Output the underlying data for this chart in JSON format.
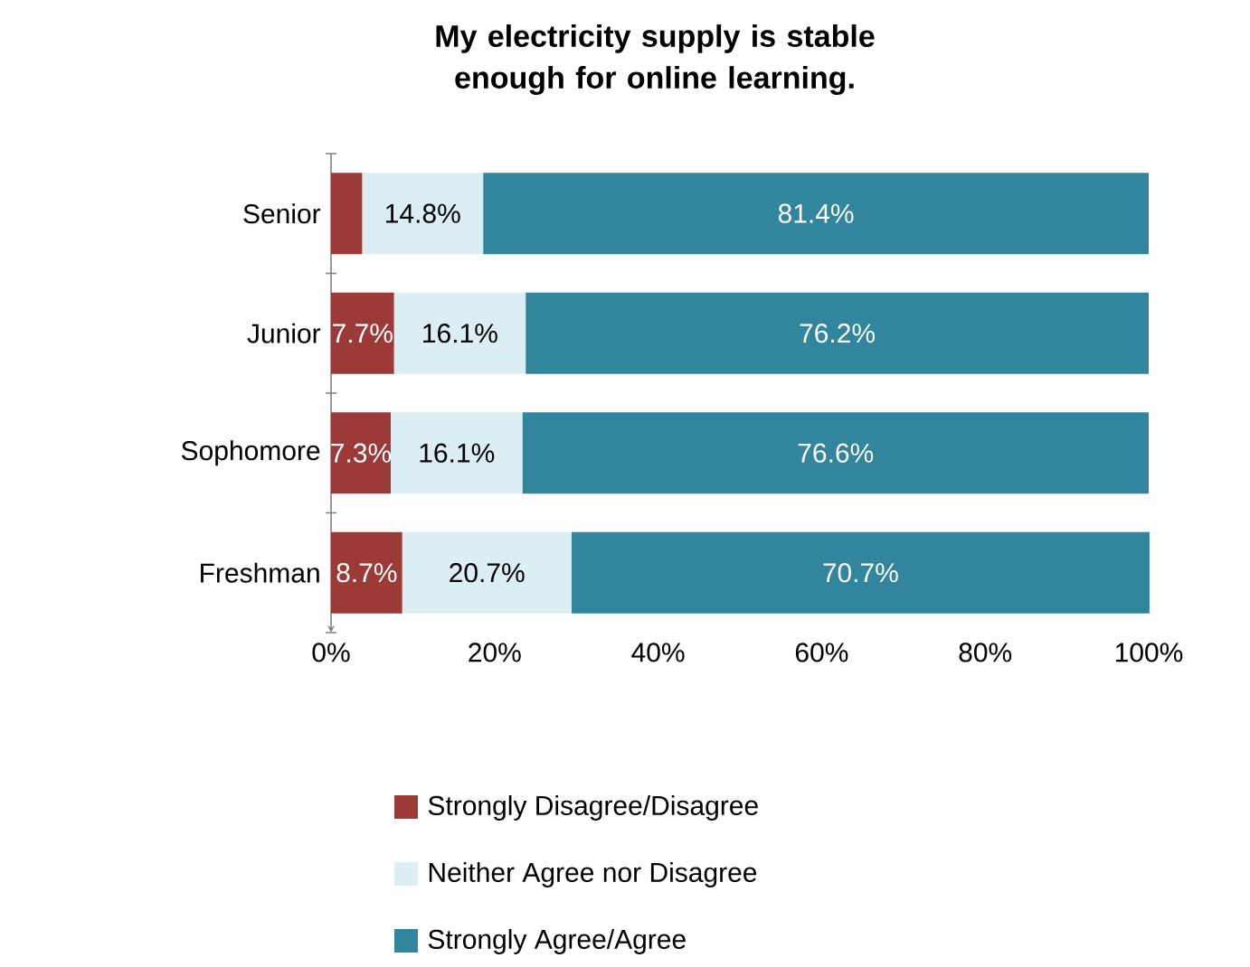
{
  "chart_data": {
    "type": "bar",
    "orientation": "horizontal",
    "stacked": true,
    "title": "My electricity supply is stable enough for online learning.",
    "categories": [
      "Senior",
      "Junior",
      "Sophomore",
      "Freshman"
    ],
    "series": [
      {
        "name": "Strongly Disagree/Disagree",
        "color": "#9b3a36",
        "values": [
          3.8,
          7.7,
          7.3,
          8.7
        ],
        "value_labels": [
          null,
          "7.7%",
          "7.3%",
          "8.7%"
        ]
      },
      {
        "name": "Neither Agree nor Disagree",
        "color": "#dbeef3",
        "values": [
          14.8,
          16.1,
          16.1,
          20.7
        ],
        "value_labels": [
          "14.8%",
          "16.1%",
          "16.1%",
          "20.7%"
        ]
      },
      {
        "name": "Strongly Agree/Agree",
        "color": "#31859c",
        "values": [
          81.4,
          76.2,
          76.6,
          70.7
        ],
        "value_labels": [
          "81.4%",
          "76.2%",
          "76.6%",
          "70.7%"
        ]
      }
    ],
    "xlim": [
      0,
      100
    ],
    "xticks": [
      {
        "value": 0,
        "label": "0%"
      },
      {
        "value": 20,
        "label": "20%"
      },
      {
        "value": 40,
        "label": "40%"
      },
      {
        "value": 60,
        "label": "60%"
      },
      {
        "value": 80,
        "label": "80%"
      },
      {
        "value": 100,
        "label": "100%"
      }
    ],
    "legend": "bottom"
  }
}
